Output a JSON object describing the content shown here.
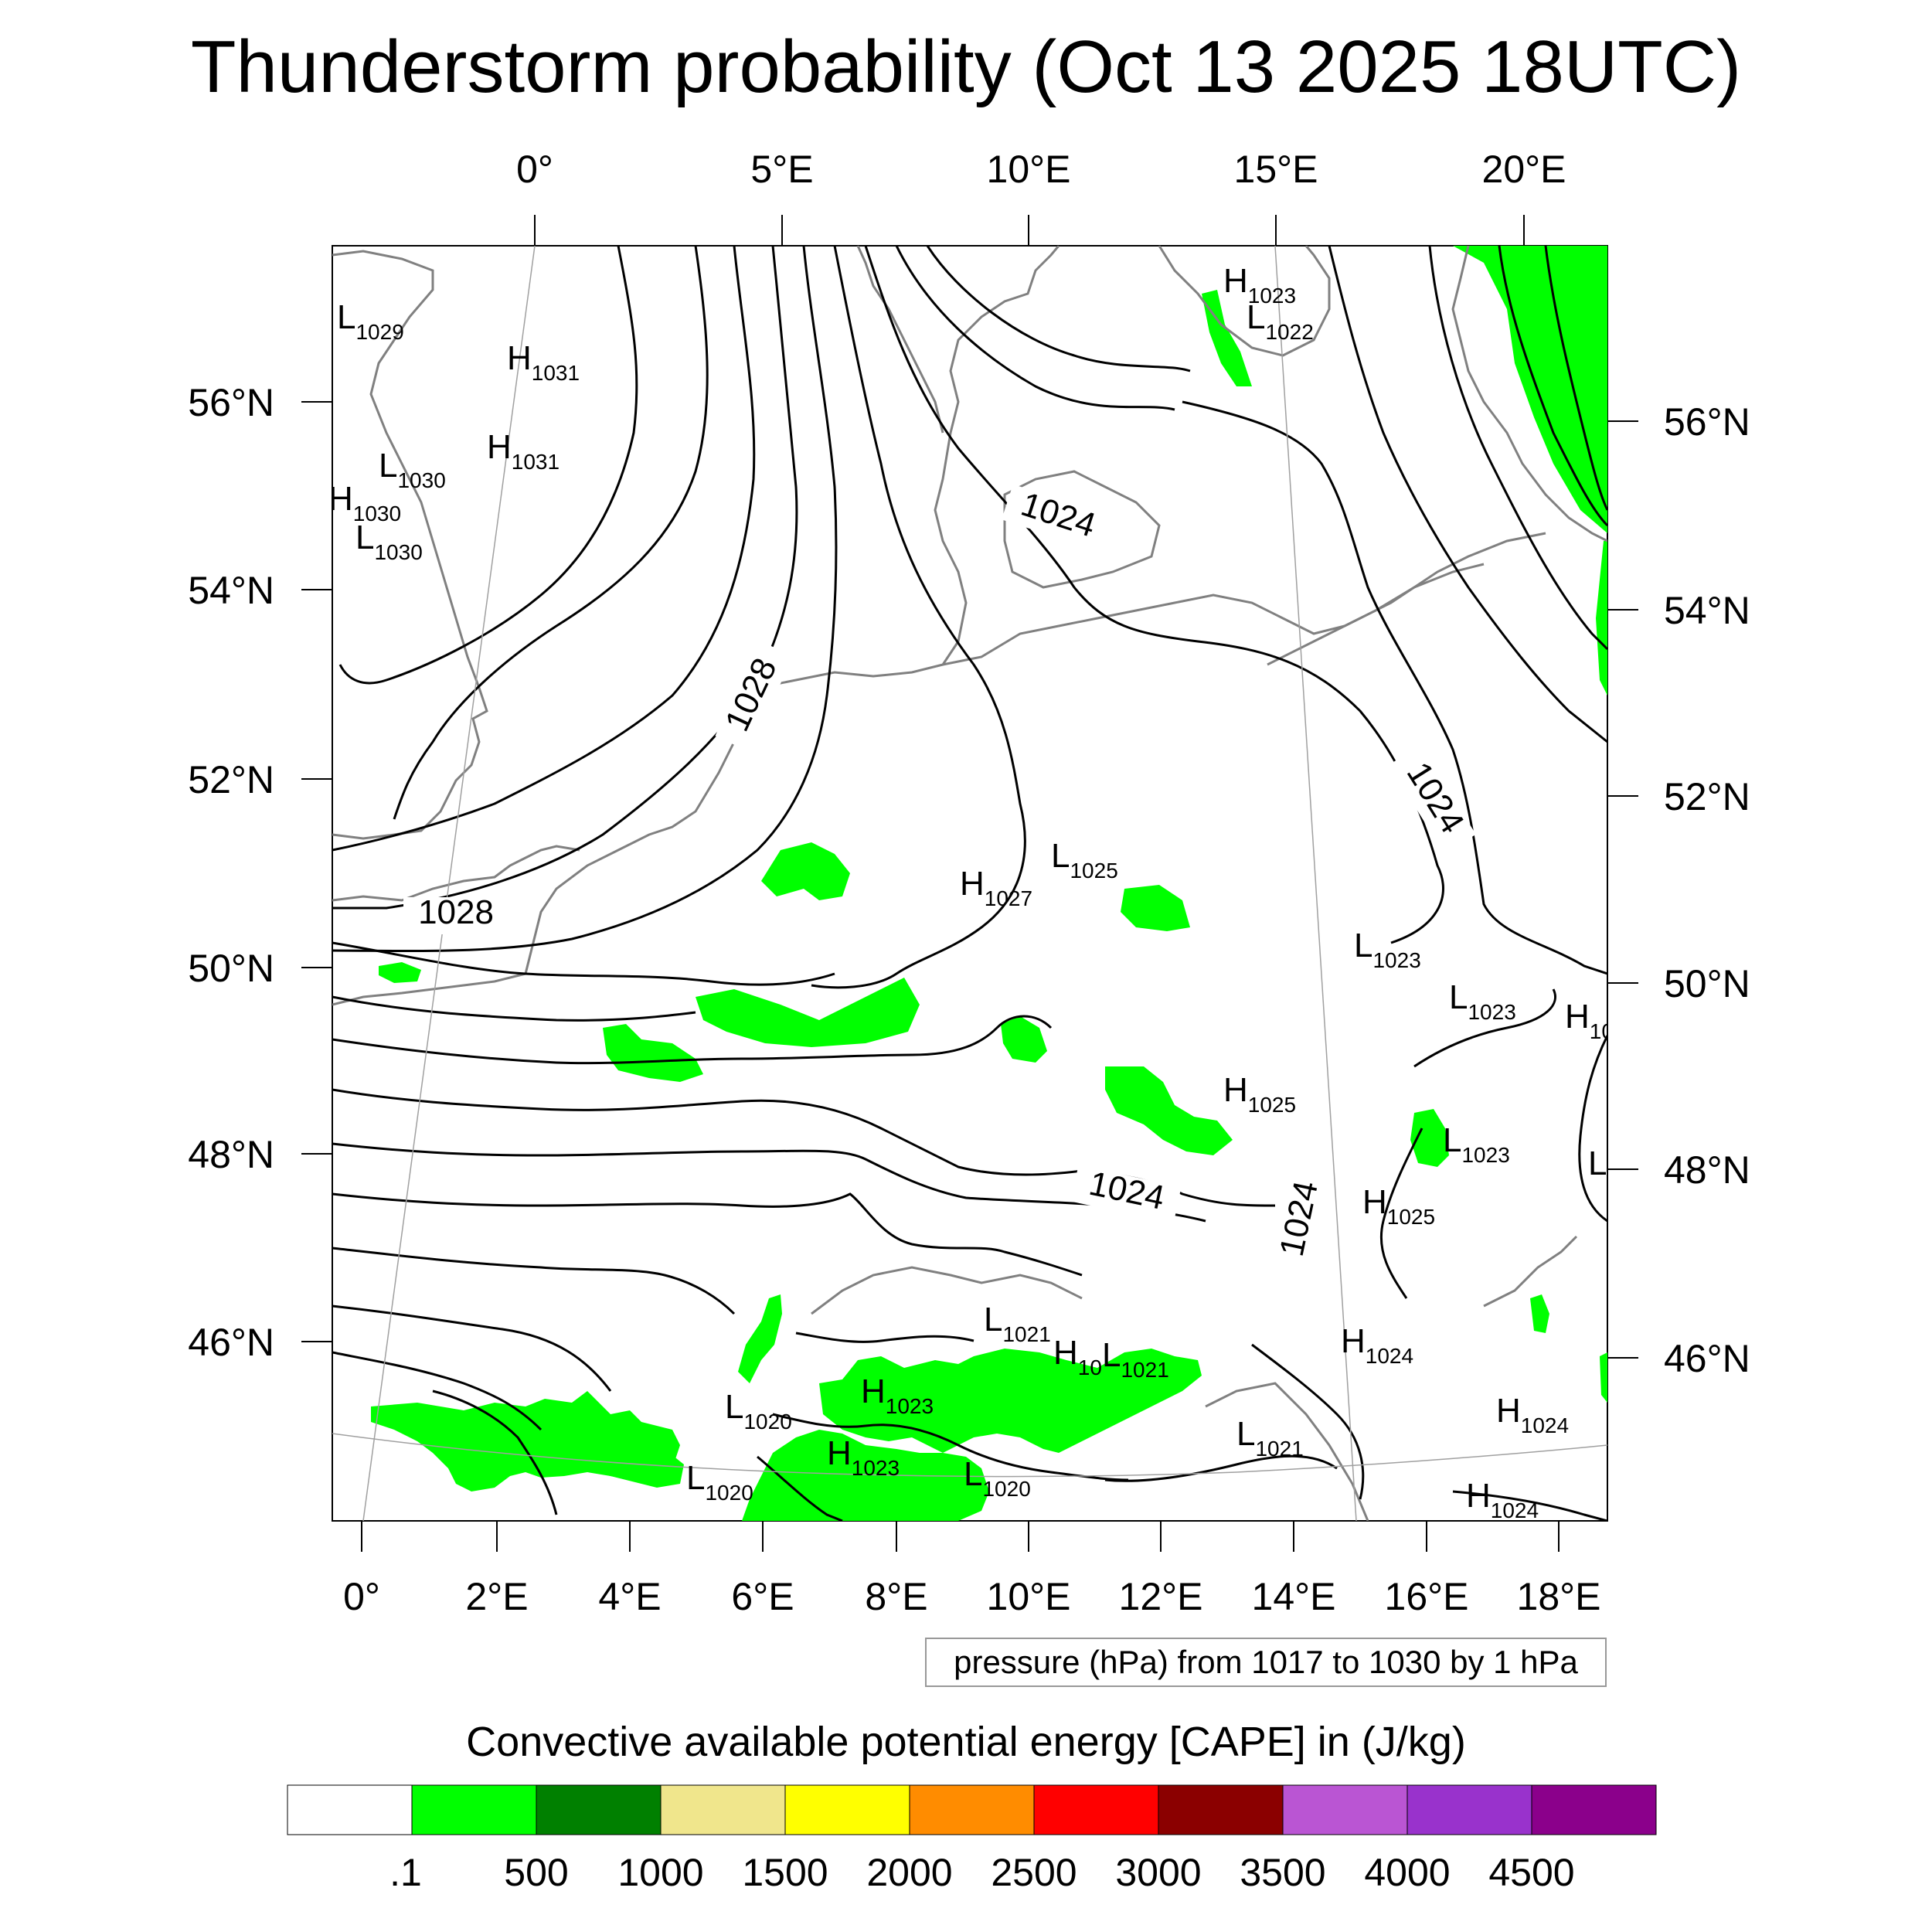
{
  "title": "Thunderstorm probability (Oct 13 2025 18UTC)",
  "map": {
    "top_lon_labels": [
      "0°",
      "5°E",
      "10°E",
      "15°E",
      "20°E"
    ],
    "bottom_lon_labels": [
      "0°",
      "2°E",
      "4°E",
      "6°E",
      "8°E",
      "10°E",
      "12°E",
      "14°E",
      "16°E",
      "18°E"
    ],
    "left_lat_labels": [
      "56°N",
      "54°N",
      "52°N",
      "50°N",
      "48°N",
      "46°N"
    ],
    "right_lat_labels": [
      "56°N",
      "54°N",
      "52°N",
      "50°N",
      "48°N",
      "46°N"
    ],
    "pressure_centers": [
      {
        "type": "L",
        "value": "1029"
      },
      {
        "type": "H",
        "value": "1031"
      },
      {
        "type": "H",
        "value": "1031"
      },
      {
        "type": "L",
        "value": "1030"
      },
      {
        "type": "H",
        "value": "1030"
      },
      {
        "type": "L",
        "value": "1030"
      },
      {
        "type": "H",
        "value": "1023"
      },
      {
        "type": "L",
        "value": "1022"
      },
      {
        "type": "L",
        "value": "1025"
      },
      {
        "type": "H",
        "value": "1027"
      },
      {
        "type": "L",
        "value": "1023"
      },
      {
        "type": "L",
        "value": "1023"
      },
      {
        "type": "H",
        "value": "10"
      },
      {
        "type": "H",
        "value": "1025"
      },
      {
        "type": "L",
        "value": "1023"
      },
      {
        "type": "L",
        "value": ""
      },
      {
        "type": "H",
        "value": "1025"
      },
      {
        "type": "L",
        "value": "1021"
      },
      {
        "type": "H",
        "value": "10"
      },
      {
        "type": "L",
        "value": "1021"
      },
      {
        "type": "H",
        "value": "1024"
      },
      {
        "type": "L",
        "value": "1020"
      },
      {
        "type": "H",
        "value": "1023"
      },
      {
        "type": "H",
        "value": "1023"
      },
      {
        "type": "L",
        "value": "1020"
      },
      {
        "type": "L",
        "value": "1020"
      },
      {
        "type": "L",
        "value": "1021"
      },
      {
        "type": "H",
        "value": "1024"
      },
      {
        "type": "H",
        "value": "1024"
      }
    ],
    "isobar_labels": [
      "1024",
      "1028",
      "1028",
      "1024",
      "1024",
      "1024"
    ],
    "colors": {
      "cape_low": "#00ff00",
      "isobar": "#000000",
      "coastline": "#808080"
    }
  },
  "contour_info": "pressure (hPa) from 1017 to 1030 by 1 hPa",
  "colorbar": {
    "title": "Convective available potential energy [CAPE] in (J/kg)",
    "colors": [
      "#ffffff",
      "#00ff00",
      "#008000",
      "#f0e68c",
      "#ffff00",
      "#ff8c00",
      "#ff0000",
      "#8b0000",
      "#ba55d3",
      "#9932cc",
      "#8b008b"
    ],
    "labels": [
      ".1",
      "500",
      "1000",
      "1500",
      "2000",
      "2500",
      "3000",
      "3500",
      "4000",
      "4500"
    ]
  }
}
